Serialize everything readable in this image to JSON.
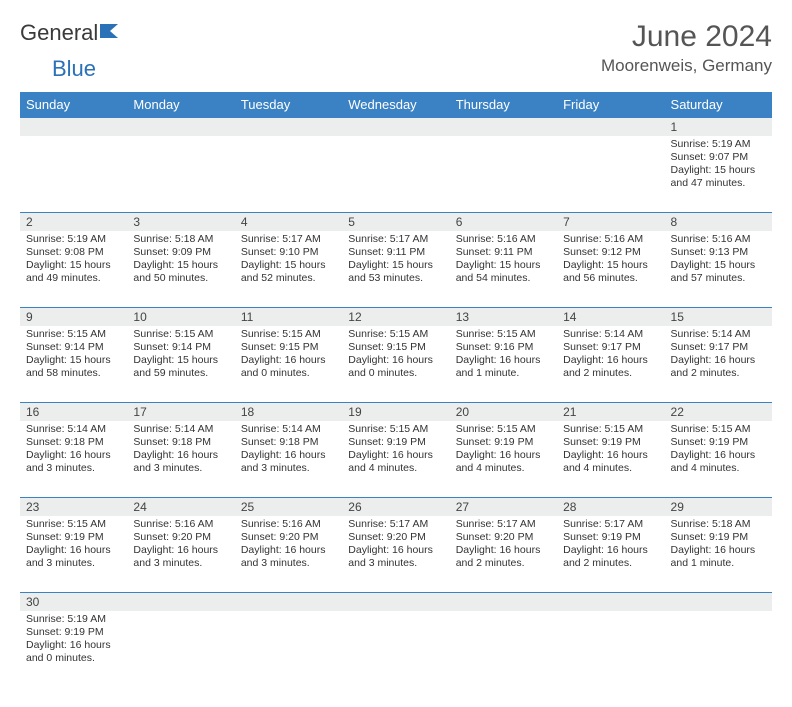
{
  "brand": {
    "part1": "General",
    "part2": "Blue"
  },
  "title": "June 2024",
  "location": "Moorenweis, Germany",
  "colors": {
    "header_bg": "#3b82c4",
    "header_text": "#ffffff",
    "daynum_bg": "#eceded",
    "border": "#3b82c4",
    "text": "#333333",
    "title_color": "#555555"
  },
  "day_names": [
    "Sunday",
    "Monday",
    "Tuesday",
    "Wednesday",
    "Thursday",
    "Friday",
    "Saturday"
  ],
  "weeks": [
    [
      null,
      null,
      null,
      null,
      null,
      null,
      {
        "n": "1",
        "sr": "Sunrise: 5:19 AM",
        "ss": "Sunset: 9:07 PM",
        "dl": "Daylight: 15 hours and 47 minutes."
      }
    ],
    [
      {
        "n": "2",
        "sr": "Sunrise: 5:19 AM",
        "ss": "Sunset: 9:08 PM",
        "dl": "Daylight: 15 hours and 49 minutes."
      },
      {
        "n": "3",
        "sr": "Sunrise: 5:18 AM",
        "ss": "Sunset: 9:09 PM",
        "dl": "Daylight: 15 hours and 50 minutes."
      },
      {
        "n": "4",
        "sr": "Sunrise: 5:17 AM",
        "ss": "Sunset: 9:10 PM",
        "dl": "Daylight: 15 hours and 52 minutes."
      },
      {
        "n": "5",
        "sr": "Sunrise: 5:17 AM",
        "ss": "Sunset: 9:11 PM",
        "dl": "Daylight: 15 hours and 53 minutes."
      },
      {
        "n": "6",
        "sr": "Sunrise: 5:16 AM",
        "ss": "Sunset: 9:11 PM",
        "dl": "Daylight: 15 hours and 54 minutes."
      },
      {
        "n": "7",
        "sr": "Sunrise: 5:16 AM",
        "ss": "Sunset: 9:12 PM",
        "dl": "Daylight: 15 hours and 56 minutes."
      },
      {
        "n": "8",
        "sr": "Sunrise: 5:16 AM",
        "ss": "Sunset: 9:13 PM",
        "dl": "Daylight: 15 hours and 57 minutes."
      }
    ],
    [
      {
        "n": "9",
        "sr": "Sunrise: 5:15 AM",
        "ss": "Sunset: 9:14 PM",
        "dl": "Daylight: 15 hours and 58 minutes."
      },
      {
        "n": "10",
        "sr": "Sunrise: 5:15 AM",
        "ss": "Sunset: 9:14 PM",
        "dl": "Daylight: 15 hours and 59 minutes."
      },
      {
        "n": "11",
        "sr": "Sunrise: 5:15 AM",
        "ss": "Sunset: 9:15 PM",
        "dl": "Daylight: 16 hours and 0 minutes."
      },
      {
        "n": "12",
        "sr": "Sunrise: 5:15 AM",
        "ss": "Sunset: 9:15 PM",
        "dl": "Daylight: 16 hours and 0 minutes."
      },
      {
        "n": "13",
        "sr": "Sunrise: 5:15 AM",
        "ss": "Sunset: 9:16 PM",
        "dl": "Daylight: 16 hours and 1 minute."
      },
      {
        "n": "14",
        "sr": "Sunrise: 5:14 AM",
        "ss": "Sunset: 9:17 PM",
        "dl": "Daylight: 16 hours and 2 minutes."
      },
      {
        "n": "15",
        "sr": "Sunrise: 5:14 AM",
        "ss": "Sunset: 9:17 PM",
        "dl": "Daylight: 16 hours and 2 minutes."
      }
    ],
    [
      {
        "n": "16",
        "sr": "Sunrise: 5:14 AM",
        "ss": "Sunset: 9:18 PM",
        "dl": "Daylight: 16 hours and 3 minutes."
      },
      {
        "n": "17",
        "sr": "Sunrise: 5:14 AM",
        "ss": "Sunset: 9:18 PM",
        "dl": "Daylight: 16 hours and 3 minutes."
      },
      {
        "n": "18",
        "sr": "Sunrise: 5:14 AM",
        "ss": "Sunset: 9:18 PM",
        "dl": "Daylight: 16 hours and 3 minutes."
      },
      {
        "n": "19",
        "sr": "Sunrise: 5:15 AM",
        "ss": "Sunset: 9:19 PM",
        "dl": "Daylight: 16 hours and 4 minutes."
      },
      {
        "n": "20",
        "sr": "Sunrise: 5:15 AM",
        "ss": "Sunset: 9:19 PM",
        "dl": "Daylight: 16 hours and 4 minutes."
      },
      {
        "n": "21",
        "sr": "Sunrise: 5:15 AM",
        "ss": "Sunset: 9:19 PM",
        "dl": "Daylight: 16 hours and 4 minutes."
      },
      {
        "n": "22",
        "sr": "Sunrise: 5:15 AM",
        "ss": "Sunset: 9:19 PM",
        "dl": "Daylight: 16 hours and 4 minutes."
      }
    ],
    [
      {
        "n": "23",
        "sr": "Sunrise: 5:15 AM",
        "ss": "Sunset: 9:19 PM",
        "dl": "Daylight: 16 hours and 3 minutes."
      },
      {
        "n": "24",
        "sr": "Sunrise: 5:16 AM",
        "ss": "Sunset: 9:20 PM",
        "dl": "Daylight: 16 hours and 3 minutes."
      },
      {
        "n": "25",
        "sr": "Sunrise: 5:16 AM",
        "ss": "Sunset: 9:20 PM",
        "dl": "Daylight: 16 hours and 3 minutes."
      },
      {
        "n": "26",
        "sr": "Sunrise: 5:17 AM",
        "ss": "Sunset: 9:20 PM",
        "dl": "Daylight: 16 hours and 3 minutes."
      },
      {
        "n": "27",
        "sr": "Sunrise: 5:17 AM",
        "ss": "Sunset: 9:20 PM",
        "dl": "Daylight: 16 hours and 2 minutes."
      },
      {
        "n": "28",
        "sr": "Sunrise: 5:17 AM",
        "ss": "Sunset: 9:19 PM",
        "dl": "Daylight: 16 hours and 2 minutes."
      },
      {
        "n": "29",
        "sr": "Sunrise: 5:18 AM",
        "ss": "Sunset: 9:19 PM",
        "dl": "Daylight: 16 hours and 1 minute."
      }
    ],
    [
      {
        "n": "30",
        "sr": "Sunrise: 5:19 AM",
        "ss": "Sunset: 9:19 PM",
        "dl": "Daylight: 16 hours and 0 minutes."
      },
      null,
      null,
      null,
      null,
      null,
      null
    ]
  ]
}
